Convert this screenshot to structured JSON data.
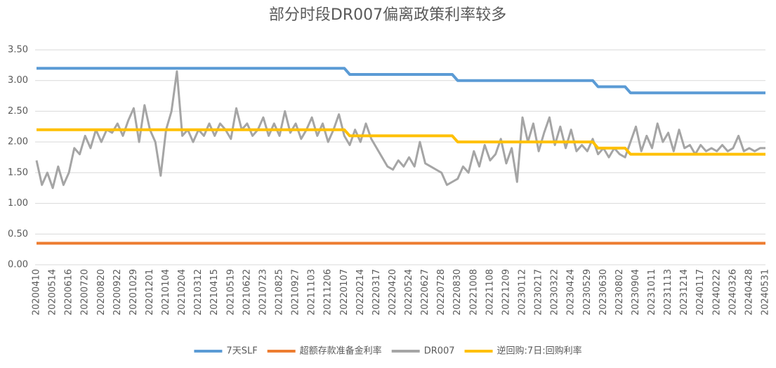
{
  "chart_data": {
    "type": "line",
    "title": "部分时段DR007偏离政策利率较多",
    "categories": [
      "20200410",
      null,
      null,
      "20200514",
      null,
      null,
      "20200616",
      null,
      null,
      "20200720",
      null,
      null,
      "20200820",
      null,
      null,
      "20200922",
      null,
      null,
      "20201029",
      null,
      null,
      "20201201",
      null,
      null,
      "20210104",
      null,
      null,
      "20210204",
      null,
      null,
      "20210312",
      null,
      null,
      "20210415",
      null,
      null,
      "20210519",
      null,
      null,
      "20210622",
      null,
      null,
      "20210723",
      null,
      null,
      "20210825",
      null,
      null,
      "20210927",
      null,
      null,
      "20211103",
      null,
      null,
      "20211206",
      null,
      null,
      "20220107",
      null,
      null,
      "20220214",
      null,
      null,
      "20220317",
      null,
      null,
      "20220420",
      null,
      null,
      "20220524",
      null,
      null,
      "20220627",
      null,
      null,
      "20220728",
      null,
      null,
      "20220830",
      null,
      null,
      "20221008",
      null,
      null,
      "20221108",
      null,
      null,
      "20221209",
      null,
      null,
      "20230112",
      null,
      null,
      "20230217",
      null,
      null,
      "20230322",
      null,
      null,
      "20230424",
      null,
      null,
      "20230529",
      null,
      null,
      "20230630",
      null,
      null,
      "20230802",
      null,
      null,
      "20230904",
      null,
      null,
      "20231011",
      null,
      null,
      "20231113",
      null,
      null,
      "20231214",
      null,
      null,
      "20240117",
      null,
      null,
      "20240222",
      null,
      null,
      "20240326",
      null,
      null,
      "20240428",
      null,
      null,
      "20240531"
    ],
    "series": [
      {
        "name": "7天SLF",
        "color": "#5b9bd5",
        "values": [
          3.2,
          3.2,
          3.2,
          3.2,
          3.2,
          3.2,
          3.2,
          3.2,
          3.2,
          3.2,
          3.2,
          3.2,
          3.2,
          3.2,
          3.2,
          3.2,
          3.2,
          3.2,
          3.2,
          3.2,
          3.2,
          3.2,
          3.2,
          3.2,
          3.2,
          3.2,
          3.2,
          3.2,
          3.2,
          3.2,
          3.2,
          3.2,
          3.2,
          3.2,
          3.2,
          3.2,
          3.2,
          3.2,
          3.2,
          3.2,
          3.2,
          3.2,
          3.2,
          3.2,
          3.2,
          3.2,
          3.2,
          3.2,
          3.2,
          3.2,
          3.2,
          3.2,
          3.2,
          3.2,
          3.2,
          3.2,
          3.2,
          3.2,
          3.1,
          3.1,
          3.1,
          3.1,
          3.1,
          3.1,
          3.1,
          3.1,
          3.1,
          3.1,
          3.1,
          3.1,
          3.1,
          3.1,
          3.1,
          3.1,
          3.1,
          3.1,
          3.1,
          3.1,
          3.0,
          3.0,
          3.0,
          3.0,
          3.0,
          3.0,
          3.0,
          3.0,
          3.0,
          3.0,
          3.0,
          3.0,
          3.0,
          3.0,
          3.0,
          3.0,
          3.0,
          3.0,
          3.0,
          3.0,
          3.0,
          3.0,
          3.0,
          3.0,
          3.0,
          3.0,
          2.9,
          2.9,
          2.9,
          2.9,
          2.9,
          2.9,
          2.8,
          2.8,
          2.8,
          2.8,
          2.8,
          2.8,
          2.8,
          2.8,
          2.8,
          2.8,
          2.8,
          2.8,
          2.8,
          2.8,
          2.8,
          2.8,
          2.8,
          2.8,
          2.8,
          2.8,
          2.8,
          2.8,
          2.8,
          2.8,
          2.8,
          2.8
        ]
      },
      {
        "name": "超额存款准备金利率",
        "color": "#ed7d31",
        "values": [
          0.35,
          0.35,
          0.35,
          0.35,
          0.35,
          0.35,
          0.35,
          0.35,
          0.35,
          0.35,
          0.35,
          0.35,
          0.35,
          0.35,
          0.35,
          0.35,
          0.35,
          0.35,
          0.35,
          0.35,
          0.35,
          0.35,
          0.35,
          0.35,
          0.35,
          0.35,
          0.35,
          0.35,
          0.35,
          0.35,
          0.35,
          0.35,
          0.35,
          0.35,
          0.35,
          0.35,
          0.35,
          0.35,
          0.35,
          0.35,
          0.35,
          0.35,
          0.35,
          0.35,
          0.35,
          0.35,
          0.35,
          0.35,
          0.35,
          0.35,
          0.35,
          0.35,
          0.35,
          0.35,
          0.35,
          0.35,
          0.35,
          0.35,
          0.35,
          0.35,
          0.35,
          0.35,
          0.35,
          0.35,
          0.35,
          0.35,
          0.35,
          0.35,
          0.35,
          0.35,
          0.35,
          0.35,
          0.35,
          0.35,
          0.35,
          0.35,
          0.35,
          0.35,
          0.35,
          0.35,
          0.35,
          0.35,
          0.35,
          0.35,
          0.35,
          0.35,
          0.35,
          0.35,
          0.35,
          0.35,
          0.35,
          0.35,
          0.35,
          0.35,
          0.35,
          0.35,
          0.35,
          0.35,
          0.35,
          0.35,
          0.35,
          0.35,
          0.35,
          0.35,
          0.35,
          0.35,
          0.35,
          0.35,
          0.35,
          0.35,
          0.35,
          0.35,
          0.35,
          0.35,
          0.35,
          0.35,
          0.35,
          0.35,
          0.35,
          0.35,
          0.35,
          0.35,
          0.35,
          0.35,
          0.35,
          0.35,
          0.35,
          0.35,
          0.35,
          0.35,
          0.35,
          0.35,
          0.35,
          0.35,
          0.35,
          0.35
        ]
      },
      {
        "name": "DR007",
        "color": "#a5a5a5",
        "values": [
          1.7,
          1.3,
          1.5,
          1.25,
          1.6,
          1.3,
          1.5,
          1.9,
          1.8,
          2.1,
          1.9,
          2.2,
          2.0,
          2.2,
          2.15,
          2.3,
          2.1,
          2.35,
          2.55,
          2.0,
          2.6,
          2.2,
          2.0,
          1.45,
          2.2,
          2.5,
          3.15,
          2.1,
          2.2,
          2.0,
          2.2,
          2.1,
          2.3,
          2.1,
          2.3,
          2.2,
          2.05,
          2.55,
          2.2,
          2.3,
          2.1,
          2.2,
          2.4,
          2.1,
          2.3,
          2.1,
          2.5,
          2.15,
          2.3,
          2.05,
          2.2,
          2.4,
          2.1,
          2.3,
          2.0,
          2.2,
          2.45,
          2.1,
          1.95,
          2.2,
          2.0,
          2.3,
          2.05,
          1.9,
          1.75,
          1.6,
          1.55,
          1.7,
          1.6,
          1.75,
          1.6,
          2.0,
          1.65,
          1.6,
          1.55,
          1.5,
          1.3,
          1.35,
          1.4,
          1.6,
          1.5,
          1.85,
          1.6,
          1.95,
          1.7,
          1.8,
          2.05,
          1.65,
          1.9,
          1.35,
          2.4,
          2.0,
          2.3,
          1.85,
          2.15,
          2.4,
          1.95,
          2.25,
          1.9,
          2.2,
          1.85,
          1.95,
          1.85,
          2.05,
          1.8,
          1.9,
          1.75,
          1.9,
          1.8,
          1.75,
          2.0,
          2.25,
          1.85,
          2.1,
          1.9,
          2.3,
          2.0,
          2.15,
          1.85,
          2.2,
          1.9,
          1.95,
          1.8,
          1.95,
          1.85,
          1.9,
          1.85,
          1.95,
          1.85,
          1.9,
          2.1,
          1.85,
          1.9,
          1.85,
          1.9,
          1.9
        ]
      },
      {
        "name": "逆回购:7日:回购利率",
        "color": "#ffc000",
        "values": [
          2.2,
          2.2,
          2.2,
          2.2,
          2.2,
          2.2,
          2.2,
          2.2,
          2.2,
          2.2,
          2.2,
          2.2,
          2.2,
          2.2,
          2.2,
          2.2,
          2.2,
          2.2,
          2.2,
          2.2,
          2.2,
          2.2,
          2.2,
          2.2,
          2.2,
          2.2,
          2.2,
          2.2,
          2.2,
          2.2,
          2.2,
          2.2,
          2.2,
          2.2,
          2.2,
          2.2,
          2.2,
          2.2,
          2.2,
          2.2,
          2.2,
          2.2,
          2.2,
          2.2,
          2.2,
          2.2,
          2.2,
          2.2,
          2.2,
          2.2,
          2.2,
          2.2,
          2.2,
          2.2,
          2.2,
          2.2,
          2.2,
          2.2,
          2.1,
          2.1,
          2.1,
          2.1,
          2.1,
          2.1,
          2.1,
          2.1,
          2.1,
          2.1,
          2.1,
          2.1,
          2.1,
          2.1,
          2.1,
          2.1,
          2.1,
          2.1,
          2.1,
          2.1,
          2.0,
          2.0,
          2.0,
          2.0,
          2.0,
          2.0,
          2.0,
          2.0,
          2.0,
          2.0,
          2.0,
          2.0,
          2.0,
          2.0,
          2.0,
          2.0,
          2.0,
          2.0,
          2.0,
          2.0,
          2.0,
          2.0,
          2.0,
          2.0,
          2.0,
          2.0,
          1.9,
          1.9,
          1.9,
          1.9,
          1.9,
          1.9,
          1.8,
          1.8,
          1.8,
          1.8,
          1.8,
          1.8,
          1.8,
          1.8,
          1.8,
          1.8,
          1.8,
          1.8,
          1.8,
          1.8,
          1.8,
          1.8,
          1.8,
          1.8,
          1.8,
          1.8,
          1.8,
          1.8,
          1.8,
          1.8,
          1.8,
          1.8
        ]
      }
    ],
    "ylim": [
      0,
      3.5
    ],
    "yticks": [
      {
        "value": 0,
        "label": "0.00"
      },
      {
        "value": 0.5,
        "label": "0.50"
      },
      {
        "value": 1,
        "label": "1.00"
      },
      {
        "value": 1.5,
        "label": "1.50"
      },
      {
        "value": 2,
        "label": "2.00"
      },
      {
        "value": 2.5,
        "label": "2.50"
      },
      {
        "value": 3,
        "label": "3.00"
      },
      {
        "value": 3.5,
        "label": "3.50"
      }
    ],
    "grid": true,
    "legend": "bottom"
  }
}
